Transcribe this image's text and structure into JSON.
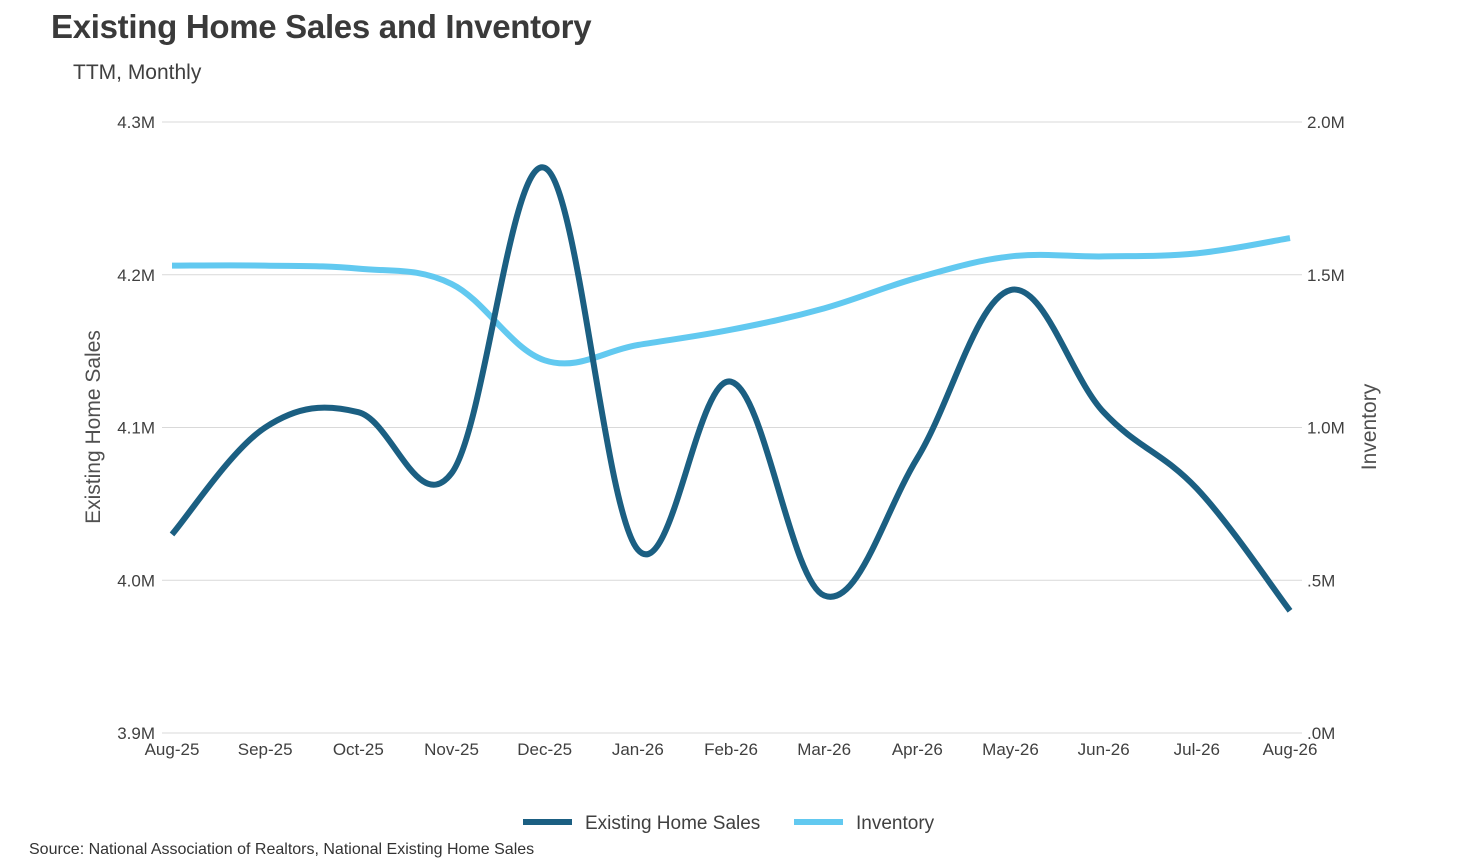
{
  "title": "Existing Home Sales and Inventory",
  "subtitle": "TTM, Monthly",
  "source": "Source: National Association of Realtors, National Existing Home Sales",
  "colors": {
    "sales": "#1b5f82",
    "inventory": "#62c9f0",
    "grid": "#d9d9d9"
  },
  "chart_data": {
    "type": "line",
    "categories": [
      "Aug-25",
      "Sep-25",
      "Oct-25",
      "Nov-25",
      "Dec-25",
      "Jan-26",
      "Feb-26",
      "Mar-26",
      "Apr-26",
      "May-26",
      "Jun-26",
      "Jul-26",
      "Aug-26"
    ],
    "y_left": {
      "label": "Existing Home Sales",
      "ylim": [
        3.9,
        4.3
      ],
      "ticks": [
        3.9,
        4.0,
        4.1,
        4.2,
        4.3
      ],
      "tick_labels": [
        "3.9M",
        "4.0M",
        "4.1M",
        "4.2M",
        "4.3M"
      ]
    },
    "y_right": {
      "label": "Inventory",
      "ylim": [
        0.0,
        2.0
      ],
      "ticks": [
        0.0,
        0.5,
        1.0,
        1.5,
        2.0
      ],
      "tick_labels": [
        ".0M",
        ".5M",
        "1.0M",
        "1.5M",
        "2.0M"
      ]
    },
    "grid": true,
    "legend_position": "bottom",
    "series": [
      {
        "name": "Existing Home Sales",
        "axis": "left",
        "values": [
          4.03,
          4.1,
          4.11,
          4.07,
          4.27,
          4.02,
          4.13,
          3.99,
          4.08,
          4.19,
          4.11,
          4.06,
          3.98
        ]
      },
      {
        "name": "Inventory",
        "axis": "right",
        "values": [
          1.53,
          1.53,
          1.52,
          1.47,
          1.22,
          1.27,
          1.32,
          1.39,
          1.49,
          1.56,
          1.56,
          1.57,
          1.62
        ]
      }
    ]
  }
}
